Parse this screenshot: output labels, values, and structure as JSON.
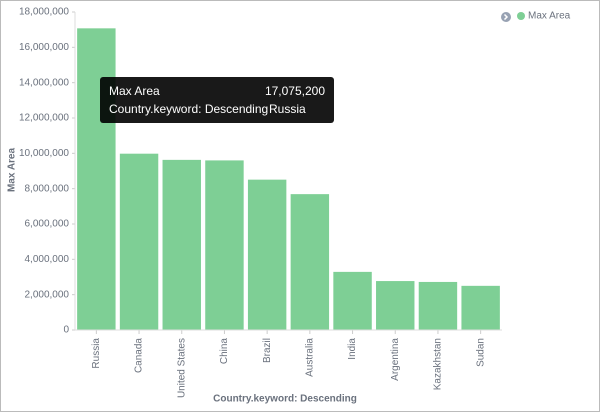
{
  "chart_data": {
    "type": "bar",
    "y_label": "Max Area",
    "x_label": "Country.keyword: Descending",
    "categories": [
      "Russia",
      "Canada",
      "United States",
      "China",
      "Brazil",
      "Australia",
      "India",
      "Argentina",
      "Kazakhstan",
      "Sudan"
    ],
    "series": [
      {
        "name": "Max Area",
        "color": "#7ecf95",
        "values": [
          17075200,
          9980000,
          9630000,
          9600000,
          8510000,
          7690000,
          3290000,
          2770000,
          2720000,
          2500000
        ]
      }
    ],
    "ylim": [
      0,
      18000000
    ],
    "yticks": [
      0,
      {
        "value": 2000000,
        "label": "2,000,000"
      },
      {
        "value": 4000000,
        "label": "4,000,000"
      },
      {
        "value": 6000000,
        "label": "6,000,000"
      },
      {
        "value": 8000000,
        "label": "8,000,000"
      },
      {
        "value": 10000000,
        "label": "10,000,000"
      },
      {
        "value": 12000000,
        "label": "12,000,000"
      },
      {
        "value": 14000000,
        "label": "14,000,000"
      },
      {
        "value": 16000000,
        "label": "16,000,000"
      },
      {
        "value": 18000000,
        "label": "18,000,000"
      }
    ],
    "grid": false,
    "legend": "top-right",
    "tooltip": {
      "value": 17075200,
      "label": "17,075,200"
    }
  }
}
